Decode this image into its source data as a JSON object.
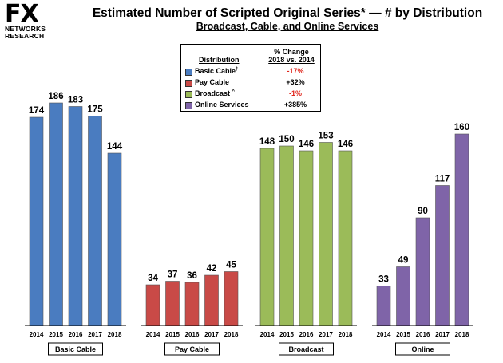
{
  "logo": {
    "main": "FX",
    "line1": "NETWORKS",
    "line2": "RESEARCH"
  },
  "title": "Estimated Number of Scripted Original Series* — # by Distribution",
  "subtitle": "Broadcast, Cable, and Online Services",
  "legend": {
    "heading_distribution": "Distribution",
    "heading_change_line1": "% Change",
    "heading_change_line2": "2018 vs. 2014",
    "rows": [
      {
        "label": "Basic Cable",
        "marker": "†",
        "change": "-17%",
        "color": "#4a7cc0"
      },
      {
        "label": "Pay Cable",
        "marker": "",
        "change": "+32%",
        "color": "#c94a47"
      },
      {
        "label": "Broadcast",
        "marker": "^",
        "change": "-1%",
        "color": "#9bbb59"
      },
      {
        "label": "Online Services",
        "marker": "",
        "change": "+385%",
        "color": "#7f64a8"
      }
    ]
  },
  "chart_data": {
    "type": "bar",
    "title": "Estimated Number of Scripted Original Series* — # by Distribution",
    "subtitle": "Broadcast, Cable, and Online Services",
    "categories": [
      "2014",
      "2015",
      "2016",
      "2017",
      "2018"
    ],
    "ylim": [
      0,
      190
    ],
    "grid": false,
    "series": [
      {
        "name": "Basic Cable",
        "color": "#4a7cc0",
        "values": [
          174,
          186,
          183,
          175,
          144
        ]
      },
      {
        "name": "Pay Cable",
        "color": "#c94a47",
        "values": [
          34,
          37,
          36,
          42,
          45
        ]
      },
      {
        "name": "Broadcast",
        "color": "#9bbb59",
        "values": [
          148,
          150,
          146,
          153,
          146
        ]
      },
      {
        "name": "Online",
        "color": "#7f64a8",
        "values": [
          33,
          49,
          90,
          117,
          160
        ]
      }
    ]
  }
}
